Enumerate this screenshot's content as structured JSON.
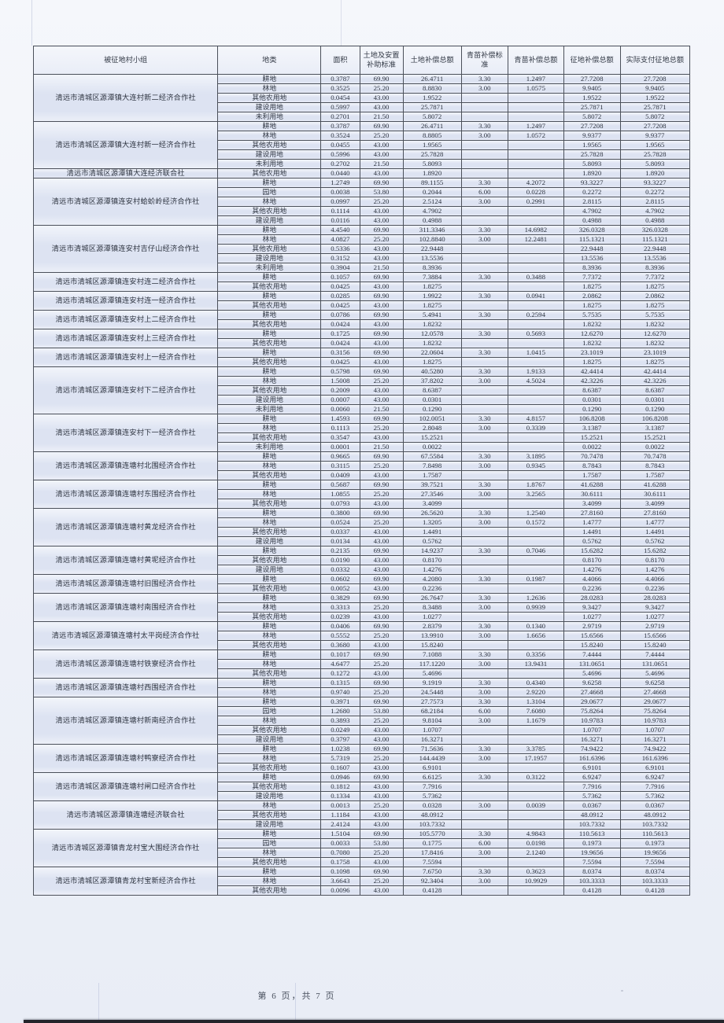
{
  "document": {
    "header": [
      "被征地村小组",
      "地类",
      "面积",
      "土地及安置补助标准",
      "土地补偿总额",
      "青苗补偿标准",
      "青苗补偿总额",
      "征地补偿总额",
      "实际支付征地总额"
    ],
    "footer": "第 6 页，共 7 页",
    "groups": [
      {
        "name": "清远市清城区源潭镇大连村新二经济合作社",
        "rows": [
          [
            "耕地",
            "0.3787",
            "69.90",
            "26.4711",
            "3.30",
            "1.2497",
            "27.7208",
            "27.7208"
          ],
          [
            "林地",
            "0.3525",
            "25.20",
            "8.8830",
            "3.00",
            "1.0575",
            "9.9405",
            "9.9405"
          ],
          [
            "其他农用地",
            "0.0454",
            "43.00",
            "1.9522",
            "",
            "",
            "1.9522",
            "1.9522"
          ],
          [
            "建设用地",
            "0.5997",
            "43.00",
            "25.7871",
            "",
            "",
            "25.7871",
            "25.7871"
          ],
          [
            "未利用地",
            "0.2701",
            "21.50",
            "5.8072",
            "",
            "",
            "5.8072",
            "5.8072"
          ]
        ]
      },
      {
        "name": "清远市清城区源潭镇大连村新一经济合作社",
        "rows": [
          [
            "耕地",
            "0.3787",
            "69.90",
            "26.4711",
            "3.30",
            "1.2497",
            "27.7208",
            "27.7208"
          ],
          [
            "林地",
            "0.3524",
            "25.20",
            "8.8805",
            "3.00",
            "1.0572",
            "9.9377",
            "9.9377"
          ],
          [
            "其他农用地",
            "0.0455",
            "43.00",
            "1.9565",
            "",
            "",
            "1.9565",
            "1.9565"
          ],
          [
            "建设用地",
            "0.5996",
            "43.00",
            "25.7828",
            "",
            "",
            "25.7828",
            "25.7828"
          ],
          [
            "未利用地",
            "0.2702",
            "21.50",
            "5.8093",
            "",
            "",
            "5.8093",
            "5.8093"
          ]
        ]
      },
      {
        "name": "清远市清城区源潭镇大连经济联合社",
        "rows": [
          [
            "其他农用地",
            "0.0440",
            "43.00",
            "1.8920",
            "",
            "",
            "1.8920",
            "1.8920"
          ]
        ]
      },
      {
        "name": "清远市清城区源潭镇连安村蛤蚧岭经济合作社",
        "rows": [
          [
            "耕地",
            "1.2749",
            "69.90",
            "89.1155",
            "3.30",
            "4.2072",
            "93.3227",
            "93.3227"
          ],
          [
            "园地",
            "0.0038",
            "53.80",
            "0.2044",
            "6.00",
            "0.0228",
            "0.2272",
            "0.2272"
          ],
          [
            "林地",
            "0.0997",
            "25.20",
            "2.5124",
            "3.00",
            "0.2991",
            "2.8115",
            "2.8115"
          ],
          [
            "其他农用地",
            "0.1114",
            "43.00",
            "4.7902",
            "",
            "",
            "4.7902",
            "4.7902"
          ],
          [
            "建设用地",
            "0.0116",
            "43.00",
            "0.4988",
            "",
            "",
            "0.4988",
            "0.4988"
          ]
        ]
      },
      {
        "name": "清远市清城区源潭镇连安村吉仔山经济合作社",
        "rows": [
          [
            "耕地",
            "4.4540",
            "69.90",
            "311.3346",
            "3.30",
            "14.6982",
            "326.0328",
            "326.0328"
          ],
          [
            "林地",
            "4.0827",
            "25.20",
            "102.8840",
            "3.00",
            "12.2481",
            "115.1321",
            "115.1321"
          ],
          [
            "其他农用地",
            "0.5336",
            "43.00",
            "22.9448",
            "",
            "",
            "22.9448",
            "22.9448"
          ],
          [
            "建设用地",
            "0.3152",
            "43.00",
            "13.5536",
            "",
            "",
            "13.5536",
            "13.5536"
          ],
          [
            "未利用地",
            "0.3904",
            "21.50",
            "8.3936",
            "",
            "",
            "8.3936",
            "8.3936"
          ]
        ]
      },
      {
        "name": "清远市清城区源潭镇连安村连二经济合作社",
        "rows": [
          [
            "耕地",
            "0.1057",
            "69.90",
            "7.3884",
            "3.30",
            "0.3488",
            "7.7372",
            "7.7372"
          ],
          [
            "其他农用地",
            "0.0425",
            "43.00",
            "1.8275",
            "",
            "",
            "1.8275",
            "1.8275"
          ]
        ]
      },
      {
        "name": "清远市清城区源潭镇连安村连一经济合作社",
        "rows": [
          [
            "耕地",
            "0.0285",
            "69.90",
            "1.9922",
            "3.30",
            "0.0941",
            "2.0862",
            "2.0862"
          ],
          [
            "其他农用地",
            "0.0425",
            "43.00",
            "1.8275",
            "",
            "",
            "1.8275",
            "1.8275"
          ]
        ]
      },
      {
        "name": "清远市清城区源潭镇连安村上二经济合作社",
        "rows": [
          [
            "耕地",
            "0.0786",
            "69.90",
            "5.4941",
            "3.30",
            "0.2594",
            "5.7535",
            "5.7535"
          ],
          [
            "其他农用地",
            "0.0424",
            "43.00",
            "1.8232",
            "",
            "",
            "1.8232",
            "1.8232"
          ]
        ]
      },
      {
        "name": "清远市清城区源潭镇连安村上三经济合作社",
        "rows": [
          [
            "耕地",
            "0.1725",
            "69.90",
            "12.0578",
            "3.30",
            "0.5693",
            "12.6270",
            "12.6270"
          ],
          [
            "其他农用地",
            "0.0424",
            "43.00",
            "1.8232",
            "",
            "",
            "1.8232",
            "1.8232"
          ]
        ]
      },
      {
        "name": "清远市清城区源潭镇连安村上一经济合作社",
        "rows": [
          [
            "耕地",
            "0.3156",
            "69.90",
            "22.0604",
            "3.30",
            "1.0415",
            "23.1019",
            "23.1019"
          ],
          [
            "其他农用地",
            "0.0425",
            "43.00",
            "1.8275",
            "",
            "",
            "1.8275",
            "1.8275"
          ]
        ]
      },
      {
        "name": "清远市清城区源潭镇连安村下二经济合作社",
        "rows": [
          [
            "耕地",
            "0.5798",
            "69.90",
            "40.5280",
            "3.30",
            "1.9133",
            "42.4414",
            "42.4414"
          ],
          [
            "林地",
            "1.5008",
            "25.20",
            "37.8202",
            "3.00",
            "4.5024",
            "42.3226",
            "42.3226"
          ],
          [
            "其他农用地",
            "0.2009",
            "43.00",
            "8.6387",
            "",
            "",
            "8.6387",
            "8.6387"
          ],
          [
            "建设用地",
            "0.0007",
            "43.00",
            "0.0301",
            "",
            "",
            "0.0301",
            "0.0301"
          ],
          [
            "未利用地",
            "0.0060",
            "21.50",
            "0.1290",
            "",
            "",
            "0.1290",
            "0.1290"
          ]
        ]
      },
      {
        "name": "清远市清城区源潭镇连安村下一经济合作社",
        "rows": [
          [
            "耕地",
            "1.4593",
            "69.90",
            "102.0051",
            "3.30",
            "4.8157",
            "106.8208",
            "106.8208"
          ],
          [
            "林地",
            "0.1113",
            "25.20",
            "2.8048",
            "3.00",
            "0.3339",
            "3.1387",
            "3.1387"
          ],
          [
            "其他农用地",
            "0.3547",
            "43.00",
            "15.2521",
            "",
            "",
            "15.2521",
            "15.2521"
          ],
          [
            "未利用地",
            "0.0001",
            "21.50",
            "0.0022",
            "",
            "",
            "0.0022",
            "0.0022"
          ]
        ]
      },
      {
        "name": "清远市清城区源潭镇连塘村北围经济合作社",
        "rows": [
          [
            "耕地",
            "0.9665",
            "69.90",
            "67.5584",
            "3.30",
            "3.1895",
            "70.7478",
            "70.7478"
          ],
          [
            "林地",
            "0.3115",
            "25.20",
            "7.8498",
            "3.00",
            "0.9345",
            "8.7843",
            "8.7843"
          ],
          [
            "其他农用地",
            "0.0409",
            "43.00",
            "1.7587",
            "",
            "",
            "1.7587",
            "1.7587"
          ]
        ]
      },
      {
        "name": "清远市清城区源潭镇连塘村东围经济合作社",
        "rows": [
          [
            "耕地",
            "0.5687",
            "69.90",
            "39.7521",
            "3.30",
            "1.8767",
            "41.6288",
            "41.6288"
          ],
          [
            "林地",
            "1.0855",
            "25.20",
            "27.3546",
            "3.00",
            "3.2565",
            "30.6111",
            "30.6111"
          ],
          [
            "其他农用地",
            "0.0793",
            "43.00",
            "3.4099",
            "",
            "",
            "3.4099",
            "3.4099"
          ]
        ]
      },
      {
        "name": "清远市清城区源潭镇连塘村黄龙经济合作社",
        "rows": [
          [
            "耕地",
            "0.3800",
            "69.90",
            "26.5620",
            "3.30",
            "1.2540",
            "27.8160",
            "27.8160"
          ],
          [
            "林地",
            "0.0524",
            "25.20",
            "1.3205",
            "3.00",
            "0.1572",
            "1.4777",
            "1.4777"
          ],
          [
            "其他农用地",
            "0.0337",
            "43.00",
            "1.4491",
            "",
            "",
            "1.4491",
            "1.4491"
          ],
          [
            "建设用地",
            "0.0134",
            "43.00",
            "0.5762",
            "",
            "",
            "0.5762",
            "0.5762"
          ]
        ]
      },
      {
        "name": "清远市清城区源潭镇连塘村黄坭经济合作社",
        "rows": [
          [
            "耕地",
            "0.2135",
            "69.90",
            "14.9237",
            "3.30",
            "0.7046",
            "15.6282",
            "15.6282"
          ],
          [
            "其他农用地",
            "0.0190",
            "43.00",
            "0.8170",
            "",
            "",
            "0.8170",
            "0.8170"
          ],
          [
            "建设用地",
            "0.0332",
            "43.00",
            "1.4276",
            "",
            "",
            "1.4276",
            "1.4276"
          ]
        ]
      },
      {
        "name": "清远市清城区源潭镇连塘村旧围经济合作社",
        "rows": [
          [
            "耕地",
            "0.0602",
            "69.90",
            "4.2080",
            "3.30",
            "0.1987",
            "4.4066",
            "4.4066"
          ],
          [
            "其他农用地",
            "0.0052",
            "43.00",
            "0.2236",
            "",
            "",
            "0.2236",
            "0.2236"
          ]
        ]
      },
      {
        "name": "清远市清城区源潭镇连塘村南围经济合作社",
        "rows": [
          [
            "耕地",
            "0.3829",
            "69.90",
            "26.7647",
            "3.30",
            "1.2636",
            "28.0283",
            "28.0283"
          ],
          [
            "林地",
            "0.3313",
            "25.20",
            "8.3488",
            "3.00",
            "0.9939",
            "9.3427",
            "9.3427"
          ],
          [
            "其他农用地",
            "0.0239",
            "43.00",
            "1.0277",
            "",
            "",
            "1.0277",
            "1.0277"
          ]
        ]
      },
      {
        "name": "清远市清城区源潭镇连塘村太平岗经济合作社",
        "rows": [
          [
            "耕地",
            "0.0406",
            "69.90",
            "2.8379",
            "3.30",
            "0.1340",
            "2.9719",
            "2.9719"
          ],
          [
            "林地",
            "0.5552",
            "25.20",
            "13.9910",
            "3.00",
            "1.6656",
            "15.6566",
            "15.6566"
          ],
          [
            "其他农用地",
            "0.3680",
            "43.00",
            "15.8240",
            "",
            "",
            "15.8240",
            "15.8240"
          ]
        ]
      },
      {
        "name": "清远市清城区源潭镇连塘村铁寮经济合作社",
        "rows": [
          [
            "耕地",
            "0.1017",
            "69.90",
            "7.1088",
            "3.30",
            "0.3356",
            "7.4444",
            "7.4444"
          ],
          [
            "林地",
            "4.6477",
            "25.20",
            "117.1220",
            "3.00",
            "13.9431",
            "131.0651",
            "131.0651"
          ],
          [
            "其他农用地",
            "0.1272",
            "43.00",
            "5.4696",
            "",
            "",
            "5.4696",
            "5.4696"
          ]
        ]
      },
      {
        "name": "清远市清城区源潭镇连塘村西围经济合作社",
        "rows": [
          [
            "耕地",
            "0.1315",
            "69.90",
            "9.1919",
            "3.30",
            "0.4340",
            "9.6258",
            "9.6258"
          ],
          [
            "林地",
            "0.9740",
            "25.20",
            "24.5448",
            "3.00",
            "2.9220",
            "27.4668",
            "27.4668"
          ]
        ]
      },
      {
        "name": "清远市清城区源潭镇连塘村新南经济合作社",
        "rows": [
          [
            "耕地",
            "0.3971",
            "69.90",
            "27.7573",
            "3.30",
            "1.3104",
            "29.0677",
            "29.0677"
          ],
          [
            "园地",
            "1.2680",
            "53.80",
            "68.2184",
            "6.00",
            "7.6080",
            "75.8264",
            "75.8264"
          ],
          [
            "林地",
            "0.3893",
            "25.20",
            "9.8104",
            "3.00",
            "1.1679",
            "10.9783",
            "10.9783"
          ],
          [
            "其他农用地",
            "0.0249",
            "43.00",
            "1.0707",
            "",
            "",
            "1.0707",
            "1.0707"
          ],
          [
            "建设用地",
            "0.3797",
            "43.00",
            "16.3271",
            "",
            "",
            "16.3271",
            "16.3271"
          ]
        ]
      },
      {
        "name": "清远市清城区源潭镇连塘村鸭寮经济合作社",
        "rows": [
          [
            "耕地",
            "1.0238",
            "69.90",
            "71.5636",
            "3.30",
            "3.3785",
            "74.9422",
            "74.9422"
          ],
          [
            "林地",
            "5.7319",
            "25.20",
            "144.4439",
            "3.00",
            "17.1957",
            "161.6396",
            "161.6396"
          ],
          [
            "其他农用地",
            "0.1607",
            "43.00",
            "6.9101",
            "",
            "",
            "6.9101",
            "6.9101"
          ]
        ]
      },
      {
        "name": "清远市清城区源潭镇连塘村闸口经济合作社",
        "rows": [
          [
            "耕地",
            "0.0946",
            "69.90",
            "6.6125",
            "3.30",
            "0.3122",
            "6.9247",
            "6.9247"
          ],
          [
            "其他农用地",
            "0.1812",
            "43.00",
            "7.7916",
            "",
            "",
            "7.7916",
            "7.7916"
          ],
          [
            "建设用地",
            "0.1334",
            "43.00",
            "5.7362",
            "",
            "",
            "5.7362",
            "5.7362"
          ]
        ]
      },
      {
        "name": "清远市清城区源潭镇连塘经济联合社",
        "rows": [
          [
            "林地",
            "0.0013",
            "25.20",
            "0.0328",
            "3.00",
            "0.0039",
            "0.0367",
            "0.0367"
          ],
          [
            "其他农用地",
            "1.1184",
            "43.00",
            "48.0912",
            "",
            "",
            "48.0912",
            "48.0912"
          ],
          [
            "建设用地",
            "2.4124",
            "43.00",
            "103.7332",
            "",
            "",
            "103.7332",
            "103.7332"
          ]
        ]
      },
      {
        "name": "清远市清城区源潭镇青龙村宝大围经济合作社",
        "rows": [
          [
            "耕地",
            "1.5104",
            "69.90",
            "105.5770",
            "3.30",
            "4.9843",
            "110.5613",
            "110.5613"
          ],
          [
            "园地",
            "0.0033",
            "53.80",
            "0.1775",
            "6.00",
            "0.0198",
            "0.1973",
            "0.1973"
          ],
          [
            "林地",
            "0.7080",
            "25.20",
            "17.8416",
            "3.00",
            "2.1240",
            "19.9656",
            "19.9656"
          ],
          [
            "其他农用地",
            "0.1758",
            "43.00",
            "7.5594",
            "",
            "",
            "7.5594",
            "7.5594"
          ]
        ]
      },
      {
        "name": "清远市清城区源潭镇青龙村宝新经济合作社",
        "rows": [
          [
            "耕地",
            "0.1098",
            "69.90",
            "7.6750",
            "3.30",
            "0.3623",
            "8.0374",
            "8.0374"
          ],
          [
            "林地",
            "3.6643",
            "25.20",
            "92.3404",
            "3.00",
            "10.9929",
            "103.3333",
            "103.3333"
          ],
          [
            "其他农用地",
            "0.0096",
            "43.00",
            "0.4128",
            "",
            "",
            "0.4128",
            "0.4128"
          ]
        ]
      }
    ],
    "colors": {
      "page_bg": "#eef1f8",
      "row_band": "#dde3f2",
      "border": "#4b505a",
      "text": "#2e3440",
      "bottom_edge": "#23242a"
    }
  }
}
